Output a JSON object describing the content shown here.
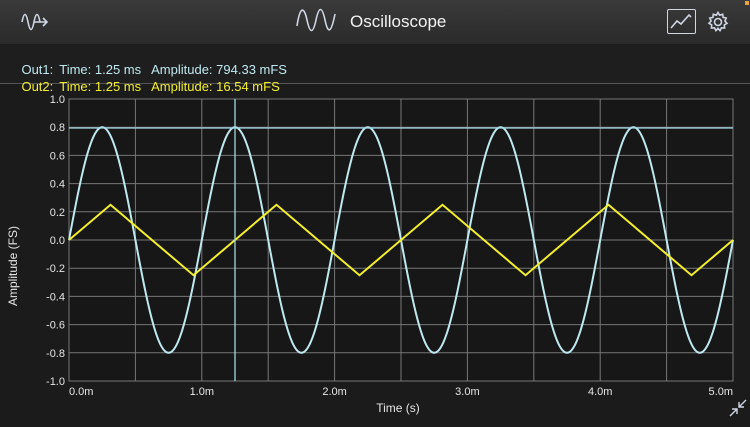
{
  "header": {
    "title": "Oscilloscope",
    "app_icon": "waveform-export-icon",
    "title_icon": "sine-wave-icon",
    "chart_button_icon": "chart-icon",
    "settings_icon": "gear-icon"
  },
  "readouts": [
    {
      "channel": "Out1:",
      "time": "Time: 1.25 ms",
      "amplitude": "Amplitude: 794.33 mFS",
      "color": "#bfe9f0"
    },
    {
      "channel": "Out2:",
      "time": "Time: 1.25 ms",
      "amplitude": "Amplitude: 16.54 mFS",
      "color": "#f3ef2a"
    }
  ],
  "expand_icon": "collapse-arrows-icon",
  "chart_data": {
    "type": "line",
    "title": "",
    "xlabel": "Time (s)",
    "ylabel": "Amplitude (FS)",
    "xlim": [
      0,
      5
    ],
    "ylim": [
      -1,
      1
    ],
    "x_unit": "ms",
    "x_ticks": [
      0,
      1,
      2,
      3,
      4,
      5
    ],
    "x_tick_labels": [
      "0.0m",
      "1.0m",
      "2.0m",
      "3.0m",
      "4.0m",
      "5.0m"
    ],
    "y_ticks": [
      1.0,
      0.8,
      0.6,
      0.4,
      0.2,
      0.0,
      -0.2,
      -0.4,
      -0.6,
      -0.8,
      -1.0
    ],
    "y_tick_labels": [
      "1.0",
      "0.8",
      "0.6",
      "0.4",
      "0.2",
      "0.0",
      "-0.2",
      "-0.4",
      "-0.6",
      "-0.8",
      "-1.0"
    ],
    "grid": true,
    "cursor": {
      "time": 1.25,
      "level": 0.79433
    },
    "series": [
      {
        "color": "#bfe9f0",
        "shape": "sine",
        "frequency_khz": 1.0,
        "amplitude": 0.8,
        "x": [
          0,
          0.25,
          0.5,
          0.75,
          1.0,
          1.25,
          1.5,
          1.75,
          2.0,
          2.25,
          2.5,
          2.75,
          3.0,
          3.25,
          3.5,
          3.75,
          4.0,
          4.25,
          4.5,
          4.75,
          5.0
        ],
        "values": [
          0,
          0.8,
          0,
          -0.8,
          0,
          0.8,
          0,
          -0.8,
          0,
          0.8,
          0,
          -0.8,
          0,
          0.8,
          0,
          -0.8,
          0,
          0.8,
          0,
          -0.8,
          0
        ]
      },
      {
        "color": "#f3ef2a",
        "shape": "triangle",
        "frequency_khz": 0.8,
        "amplitude": 0.25,
        "x": [
          0,
          0.3125,
          0.9375,
          1.5625,
          2.1875,
          2.8125,
          3.4375,
          4.0625,
          4.6875,
          5.0
        ],
        "values": [
          0,
          0.25,
          -0.25,
          0.25,
          -0.25,
          0.25,
          -0.25,
          0.25,
          -0.25,
          0
        ]
      }
    ]
  }
}
